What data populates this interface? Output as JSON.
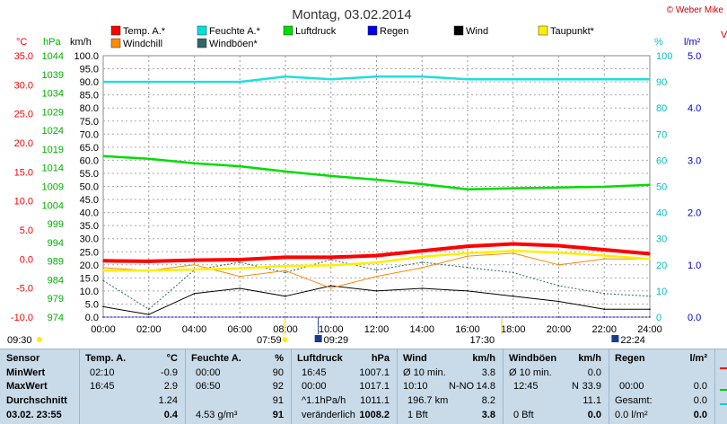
{
  "page": {
    "title": "Montag, 03.02.2014",
    "credit": "© Weber Mike",
    "right_edge_letter": "V"
  },
  "legend": [
    {
      "label": "Temp. A.*",
      "color": "#ff0000"
    },
    {
      "label": "Feuchte A.*",
      "color": "#00e0e0"
    },
    {
      "label": "Luftdruck",
      "color": "#00dd00"
    },
    {
      "label": "Regen",
      "color": "#0000ee"
    },
    {
      "label": "Wind",
      "color": "#000000"
    },
    {
      "label": "Taupunkt*",
      "color": "#ffee00"
    },
    {
      "label": "Windchill",
      "color": "#ff8800"
    },
    {
      "label": "Windböen*",
      "color": "#336666"
    }
  ],
  "axes": {
    "temp_unit": "°C",
    "pressure_unit": "hPa",
    "wind_unit": "km/h",
    "humidity_unit": "%",
    "rain_unit": "l/m²",
    "temp_ticks": [
      "35.0",
      "30.0",
      "25.0",
      "20.0",
      "15.0",
      "10.0",
      "5.0",
      "0.0",
      "-5.0",
      "-10.0"
    ],
    "pressure_ticks": [
      "1044",
      "1039",
      "1034",
      "1029",
      "1024",
      "1019",
      "1014",
      "1009",
      "1004",
      "999",
      "994",
      "989",
      "984",
      "979",
      "974"
    ],
    "wind_ticks": [
      "100.0",
      "95.0",
      "90.0",
      "85.0",
      "80.0",
      "75.0",
      "70.0",
      "65.0",
      "60.0",
      "55.0",
      "50.0",
      "45.0",
      "40.0",
      "35.0",
      "30.0",
      "25.0",
      "20.0",
      "15.0",
      "10.0",
      "5.0",
      "0.0"
    ],
    "humidity_ticks": [
      "100",
      "90",
      "80",
      "70",
      "60",
      "50",
      "40",
      "30",
      "20",
      "10",
      "0"
    ],
    "rain_ticks": [
      "5.0",
      "4.0",
      "3.0",
      "2.0",
      "1.0",
      "0.0"
    ],
    "time_ticks": [
      "00:00",
      "02:00",
      "04:00",
      "06:00",
      "08:00",
      "10:00",
      "12:00",
      "14:00",
      "16:00",
      "18:00",
      "20:00",
      "22:00",
      "24:00"
    ]
  },
  "markers": {
    "left": "09:30",
    "sunrise": "07:59",
    "moonrise": "09:29",
    "sunset": "17:30",
    "moonset": "22:24"
  },
  "chart_data": {
    "type": "line",
    "x": [
      "00:00",
      "02:00",
      "04:00",
      "06:00",
      "08:00",
      "10:00",
      "12:00",
      "14:00",
      "16:00",
      "18:00",
      "20:00",
      "22:00",
      "24:00"
    ],
    "xlim": [
      "00:00",
      "24:00"
    ],
    "grid": true,
    "legend_position": "top",
    "series": [
      {
        "name": "Temp. A.*",
        "axis": "temp",
        "values": [
          -0.3,
          -0.4,
          -0.2,
          -0.1,
          0.3,
          0.3,
          0.6,
          1.4,
          2.2,
          2.6,
          2.3,
          1.6,
          0.9
        ]
      },
      {
        "name": "Feuchte A.*",
        "axis": "humidity",
        "values": [
          90,
          90,
          90,
          90,
          92,
          91,
          92,
          92,
          91,
          91,
          91,
          91,
          91
        ]
      },
      {
        "name": "Luftdruck",
        "axis": "pressure",
        "values": [
          1017.1,
          1016.4,
          1015.2,
          1014.4,
          1013.0,
          1011.8,
          1010.8,
          1009.6,
          1008.2,
          1008.5,
          1008.7,
          1008.9,
          1009.4
        ]
      },
      {
        "name": "Wind",
        "axis": "wind",
        "values": [
          4,
          1,
          9,
          11,
          8,
          12,
          10,
          11,
          10,
          8,
          6,
          3,
          3
        ]
      },
      {
        "name": "Taupunkt*",
        "axis": "temp",
        "values": [
          -2.0,
          -2.0,
          -1.8,
          -1.6,
          -1.2,
          -1.1,
          -0.6,
          0.4,
          1.0,
          1.4,
          1.1,
          0.6,
          0.0
        ]
      },
      {
        "name": "Windchill",
        "axis": "temp",
        "values": [
          -1.5,
          -2.0,
          -1.0,
          -3.0,
          -2.0,
          -5.0,
          -3.0,
          -1.5,
          0.5,
          1.0,
          -1.0,
          0.0,
          0.0
        ]
      },
      {
        "name": "Windböen*",
        "axis": "wind",
        "values": [
          14,
          3,
          18,
          21,
          17,
          22,
          18,
          21,
          19,
          17,
          12,
          9,
          8
        ]
      },
      {
        "name": "Regen",
        "axis": "rain",
        "values": [
          0,
          0,
          0,
          0,
          0,
          0,
          0,
          0,
          0,
          0,
          0,
          0,
          0
        ]
      }
    ],
    "axis_ranges": {
      "temp": [
        -10,
        35
      ],
      "pressure": [
        974,
        1044
      ],
      "wind": [
        0,
        100
      ],
      "humidity": [
        0,
        100
      ],
      "rain": [
        0,
        5
      ]
    }
  },
  "table": {
    "sensor": {
      "title": "Sensor",
      "min": "MinWert",
      "max": "MaxWert",
      "avg": "Durchschnitt",
      "now": "03.02. 23:55"
    },
    "temp": {
      "title": "Temp. A.",
      "unit": "°C",
      "min_time": "02:10",
      "min": "-0.9",
      "max_time": "16:45",
      "max": "2.9",
      "avg": "1.24",
      "now": "0.4"
    },
    "humidity": {
      "title": "Feuchte A.",
      "unit": "%",
      "min_time": "00:00",
      "min": "90",
      "max_time": "06:50",
      "max": "92",
      "avg": "91",
      "abs": "4.53 g/m³",
      "now": "91"
    },
    "pressure": {
      "title": "Luftdruck",
      "unit": "hPa",
      "min_time": "16:45",
      "min": "1007.1",
      "max_time": "00:00",
      "max": "1017.1",
      "trend": "^1.1hPa/h",
      "avg": "1011.1",
      "tendency": "veränderlich",
      "now": "1008.2"
    },
    "wind": {
      "title": "Wind",
      "unit": "km/h",
      "avg_label": "Ø 10 min.",
      "avg": "3.8",
      "max_time": "10:10",
      "max_dir": "N-NO",
      "max": "14.8",
      "dist": "196.7 km",
      "mean": "8.2",
      "bft": "1 Bft",
      "now": "3.8"
    },
    "gust": {
      "title": "Windböen",
      "unit": "km/h",
      "avg_label": "Ø 10 min.",
      "avg": "0.0",
      "max_time": "12:45",
      "max_dir": "N",
      "max": "33.9",
      "mean": "11.1",
      "bft": "0 Bft",
      "now": "0.0"
    },
    "rain": {
      "title": "Regen",
      "unit": "l/m²",
      "max_time": "00:00",
      "max": "0.0",
      "total_label": "Gesamt:",
      "total": "0.0",
      "now_label": "0.0 l/m²",
      "now": "0.0"
    }
  }
}
